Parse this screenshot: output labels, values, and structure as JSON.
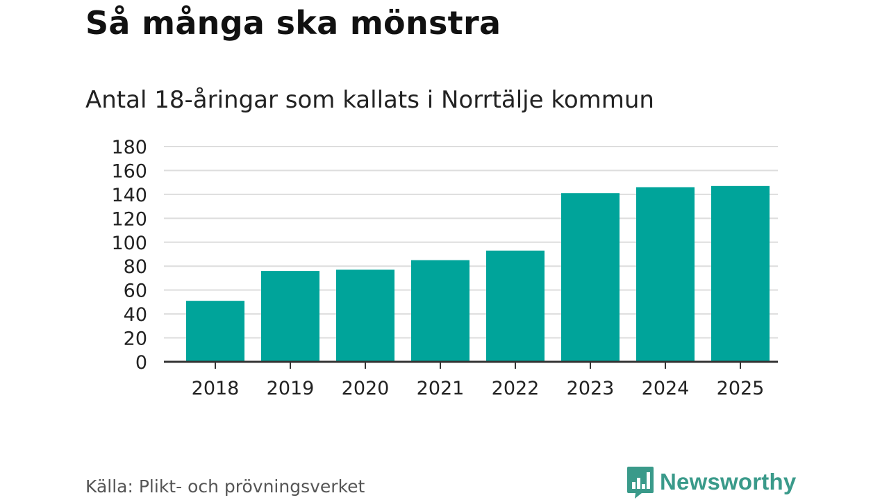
{
  "title": "Så många ska mönstra",
  "subtitle": "Antal 18-åringar som kallats i Norrtälje kommun",
  "source": "Källa: Plikt- och prövningsverket",
  "brand": "Newsworthy",
  "colors": {
    "bar": "#00a49a",
    "grid": "#dddddd",
    "axis": "#333333",
    "brand": "#3a9a8a"
  },
  "chart_data": {
    "type": "bar",
    "title": "Så många ska mönstra",
    "subtitle": "Antal 18-åringar som kallats i Norrtälje kommun",
    "xlabel": "",
    "ylabel": "",
    "categories": [
      "2018",
      "2019",
      "2020",
      "2021",
      "2022",
      "2023",
      "2024",
      "2025"
    ],
    "values": [
      51,
      76,
      77,
      85,
      93,
      141,
      146,
      147
    ],
    "ylim": [
      0,
      180
    ],
    "yticks": [
      "0",
      "20",
      "40",
      "60",
      "80",
      "100",
      "120",
      "140",
      "160",
      "180"
    ],
    "grid": true,
    "legend": "none"
  }
}
